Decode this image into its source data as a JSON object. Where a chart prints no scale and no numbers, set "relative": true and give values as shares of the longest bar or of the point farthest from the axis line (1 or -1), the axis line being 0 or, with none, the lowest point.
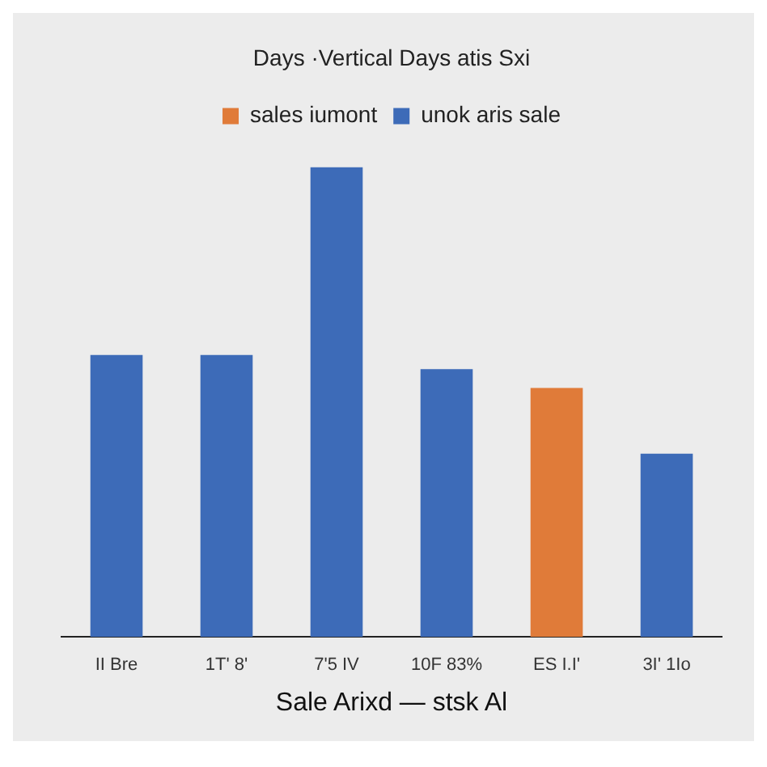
{
  "chart_data": {
    "type": "bar",
    "title": "Days ·Vertical Days atis Sxi",
    "xlabel": "Sale Arixd — stsk Al",
    "relative": true,
    "stacked": true,
    "legend": "top",
    "categories": [
      "II Bre",
      "1T' 8'",
      "7'5 IV",
      "10F 83%",
      "ES I.I'",
      "3I' 1Io"
    ],
    "series": [
      {
        "name": "sales iumont",
        "color": "#e07b39",
        "values": [
          null,
          null,
          null,
          null,
          0.53,
          null
        ]
      },
      {
        "name": "unok aris sale",
        "color": "#3d6bb8",
        "values": [
          0.6,
          0.6,
          1,
          0.57,
          null,
          0.39
        ]
      }
    ]
  }
}
